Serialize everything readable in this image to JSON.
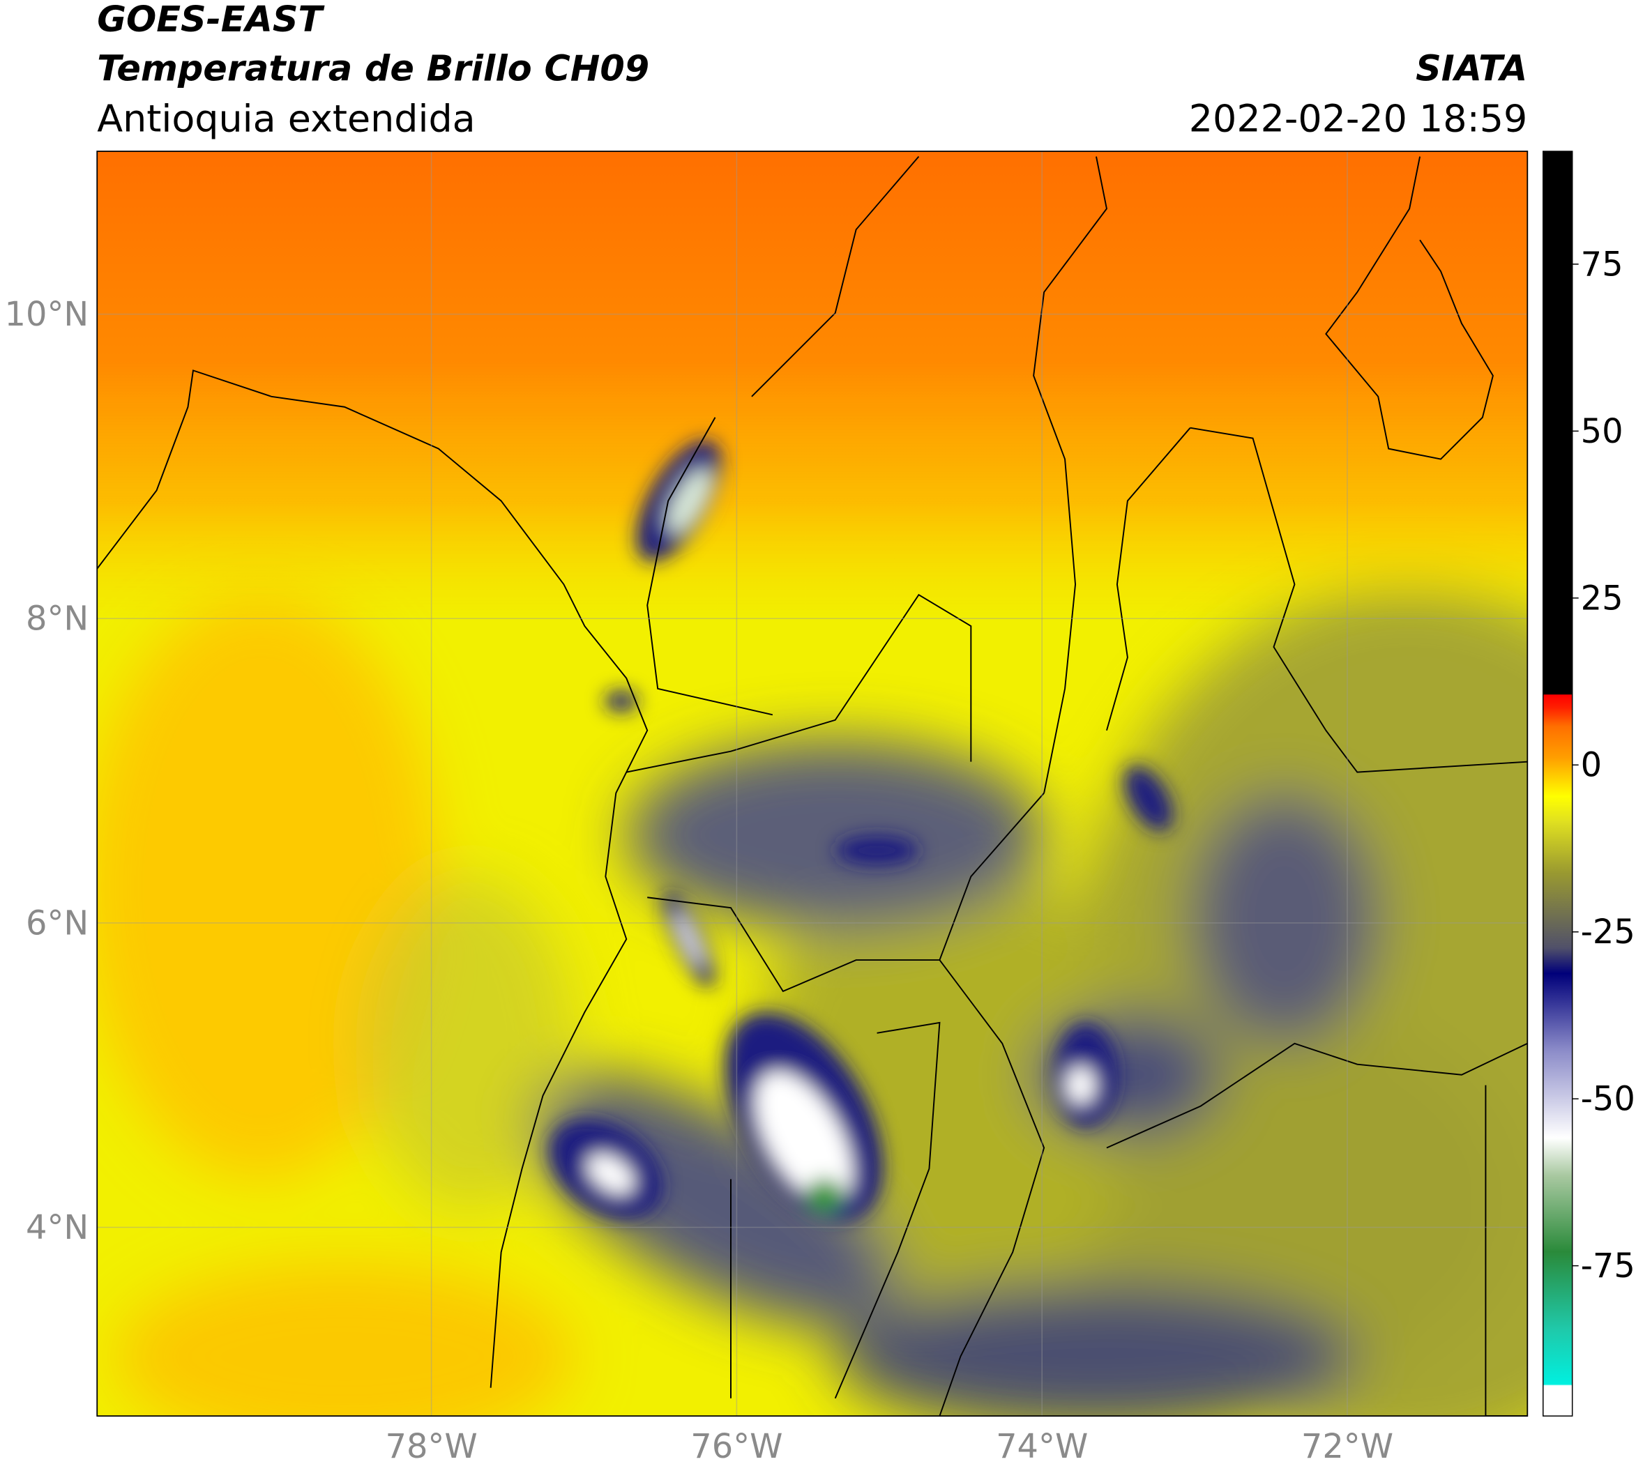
{
  "header": {
    "title": "GOES-EAST",
    "subtitle": "Temperatura de Brillo CH09",
    "region": "Antioquia extendida",
    "source": "SIATA",
    "datetime": "2022-02-20 18:59"
  },
  "map": {
    "xlim": [
      -80.19,
      -70.82
    ],
    "ylim": [
      2.76,
      11.07
    ],
    "yticks": [
      {
        "value": 4,
        "label": "4°N"
      },
      {
        "value": 6,
        "label": "6°N"
      },
      {
        "value": 8,
        "label": "8°N"
      },
      {
        "value": 10,
        "label": "10°N"
      }
    ],
    "xticks": [
      {
        "value": -78,
        "label": "78°W"
      },
      {
        "value": -76,
        "label": "76°W"
      },
      {
        "value": -74,
        "label": "74°W"
      },
      {
        "value": -72,
        "label": "72°W"
      }
    ],
    "grid": true
  },
  "colorbar": {
    "lim": [
      -97.5,
      91.9
    ],
    "ticks": [
      -75,
      -50,
      -25,
      0,
      25,
      50,
      75
    ]
  }
}
